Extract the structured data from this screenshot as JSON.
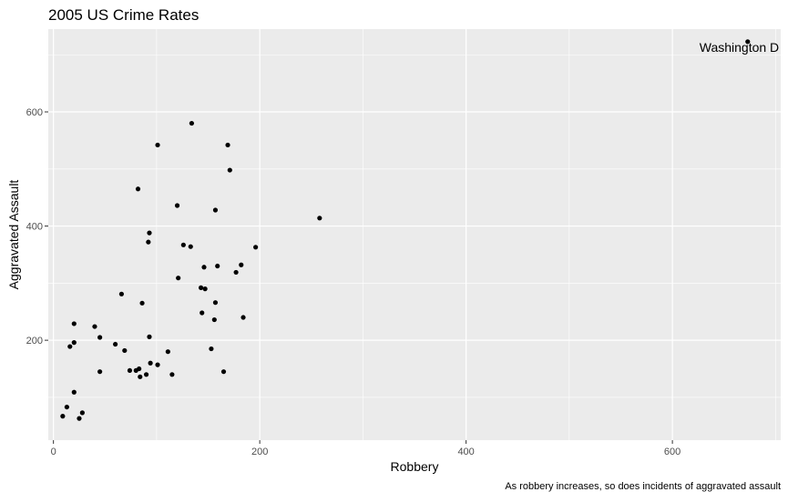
{
  "chart_data": {
    "type": "scatter",
    "title": "2005 US Crime Rates",
    "xlabel": "Robbery",
    "ylabel": "Aggravated Assault",
    "caption": "As robbery increases, so does incidents of aggravated assault",
    "xlim": [
      -5,
      705
    ],
    "ylim": [
      25,
      745
    ],
    "xticks": [
      0,
      200,
      400,
      600
    ],
    "yticks": [
      200,
      400,
      600
    ],
    "grid": true,
    "colors": {
      "panel": "#ebebeb",
      "grid": "#ffffff",
      "point": "#000000",
      "axis_text": "#4d4d4d"
    },
    "annotations": [
      {
        "text": "Washington D",
        "x": 673,
        "y": 713
      }
    ],
    "points": [
      {
        "x": 9,
        "y": 67
      },
      {
        "x": 13,
        "y": 83
      },
      {
        "x": 20,
        "y": 109
      },
      {
        "x": 25,
        "y": 63
      },
      {
        "x": 28,
        "y": 73
      },
      {
        "x": 16,
        "y": 189
      },
      {
        "x": 20,
        "y": 196
      },
      {
        "x": 20,
        "y": 229
      },
      {
        "x": 40,
        "y": 224
      },
      {
        "x": 45,
        "y": 205
      },
      {
        "x": 45,
        "y": 145
      },
      {
        "x": 60,
        "y": 193
      },
      {
        "x": 66,
        "y": 281
      },
      {
        "x": 69,
        "y": 182
      },
      {
        "x": 74,
        "y": 147
      },
      {
        "x": 80,
        "y": 147
      },
      {
        "x": 83,
        "y": 150
      },
      {
        "x": 84,
        "y": 136
      },
      {
        "x": 86,
        "y": 265
      },
      {
        "x": 90,
        "y": 140
      },
      {
        "x": 93,
        "y": 206
      },
      {
        "x": 94,
        "y": 160
      },
      {
        "x": 92,
        "y": 372
      },
      {
        "x": 93,
        "y": 388
      },
      {
        "x": 82,
        "y": 465
      },
      {
        "x": 101,
        "y": 542
      },
      {
        "x": 101,
        "y": 157
      },
      {
        "x": 111,
        "y": 180
      },
      {
        "x": 115,
        "y": 140
      },
      {
        "x": 120,
        "y": 436
      },
      {
        "x": 121,
        "y": 309
      },
      {
        "x": 126,
        "y": 367
      },
      {
        "x": 133,
        "y": 364
      },
      {
        "x": 134,
        "y": 580
      },
      {
        "x": 143,
        "y": 292
      },
      {
        "x": 144,
        "y": 248
      },
      {
        "x": 146,
        "y": 328
      },
      {
        "x": 147,
        "y": 290
      },
      {
        "x": 153,
        "y": 185
      },
      {
        "x": 156,
        "y": 236
      },
      {
        "x": 157,
        "y": 428
      },
      {
        "x": 157,
        "y": 266
      },
      {
        "x": 159,
        "y": 330
      },
      {
        "x": 165,
        "y": 145
      },
      {
        "x": 169,
        "y": 542
      },
      {
        "x": 171,
        "y": 498
      },
      {
        "x": 177,
        "y": 319
      },
      {
        "x": 182,
        "y": 332
      },
      {
        "x": 184,
        "y": 240
      },
      {
        "x": 196,
        "y": 363
      },
      {
        "x": 258,
        "y": 414
      },
      {
        "x": 673,
        "y": 723
      }
    ]
  }
}
